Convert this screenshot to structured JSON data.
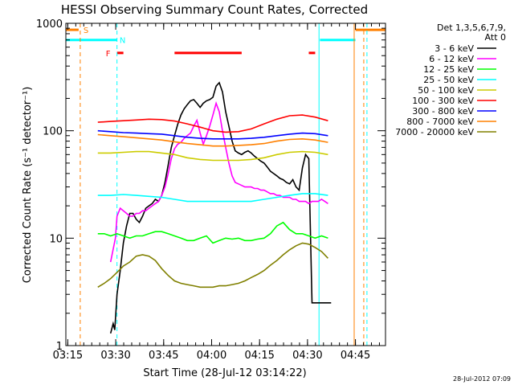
{
  "chart_data": {
    "type": "line",
    "title": "HESSI Observing Summary Count Rates, Corrected",
    "xlabel": "Start Time (28-Jul-12 03:14:22)",
    "ylabel": "Corrected Count Rate (s⁻¹ detector⁻¹)",
    "ylog": true,
    "ylim": [
      1,
      1000
    ],
    "xlim_minutes": [
      0,
      100
    ],
    "xtick_labels": [
      "03:15",
      "03:30",
      "03:45",
      "04:00",
      "04:15",
      "04:30",
      "04:45"
    ],
    "xtick_minutes": [
      0.6,
      15.6,
      30.6,
      45.6,
      60.6,
      75.6,
      90.6
    ],
    "ytick_labels": [
      "1",
      "10",
      "100",
      "1000"
    ],
    "ytick_values": [
      1,
      10,
      100,
      1000
    ],
    "legend_header": [
      "Det 1,3,5,6,7,9,",
      "Att 0"
    ],
    "legend_position": "outside-right",
    "timestamp": "28-Jul-2012 07:09",
    "series": [
      {
        "name": "3 - 6 keV",
        "color": "#000000",
        "x": [
          14,
          14.8,
          15.3,
          16,
          17,
          18,
          19,
          20,
          21,
          22,
          23,
          24,
          25,
          26,
          27,
          28,
          29,
          30,
          31,
          32,
          33,
          34,
          35,
          36,
          37,
          38,
          39,
          40,
          41,
          42,
          43,
          44,
          45,
          46,
          47,
          48,
          49,
          50,
          51,
          52,
          53,
          54,
          55,
          56,
          57,
          58,
          59,
          60,
          61,
          62,
          63,
          64,
          65,
          66,
          67,
          68,
          69,
          70,
          71,
          72,
          73,
          74,
          75,
          76,
          77,
          78,
          79,
          79.5,
          80,
          80.5,
          81,
          83
        ],
        "y": [
          1.3,
          1.6,
          1.4,
          3,
          5,
          9,
          13,
          17,
          17,
          15,
          14,
          16,
          19,
          20,
          21,
          23,
          22,
          25,
          33,
          48,
          70,
          90,
          115,
          140,
          160,
          175,
          190,
          195,
          180,
          165,
          180,
          190,
          195,
          205,
          260,
          280,
          230,
          150,
          110,
          80,
          65,
          62,
          60,
          63,
          65,
          62,
          58,
          55,
          52,
          50,
          46,
          42,
          40,
          38,
          36,
          35,
          33,
          32,
          35,
          30,
          28,
          45,
          60,
          55,
          2.5,
          2.5,
          2.5,
          2.5,
          2.5,
          2.5,
          2.5,
          2.5
        ]
      },
      {
        "name": "6 - 12 keV",
        "color": "#ff00ff",
        "x": [
          14,
          15.5,
          16,
          17,
          18,
          19,
          20,
          21,
          22,
          23,
          24,
          25,
          26,
          27,
          28,
          29,
          30,
          31,
          32,
          33,
          34,
          35,
          36,
          37,
          38,
          39,
          40,
          41,
          42,
          43,
          44,
          45,
          46,
          47,
          48,
          49,
          50,
          51,
          52,
          53,
          54,
          55,
          56,
          57,
          58,
          59,
          60,
          61,
          62,
          63,
          64,
          65,
          66,
          67,
          68,
          69,
          70,
          71,
          72,
          73,
          74,
          75,
          76,
          77,
          78,
          79,
          80,
          81,
          82
        ],
        "y": [
          6,
          10,
          16,
          19,
          18,
          17,
          16,
          16,
          17,
          17,
          18,
          18,
          19,
          20,
          21,
          22,
          25,
          30,
          40,
          55,
          68,
          75,
          78,
          85,
          90,
          95,
          110,
          125,
          95,
          75,
          90,
          110,
          140,
          180,
          150,
          100,
          70,
          50,
          38,
          33,
          32,
          31,
          30,
          30,
          30,
          29,
          29,
          28,
          28,
          27,
          26,
          26,
          25,
          25,
          24,
          24,
          24,
          23,
          23,
          22,
          22,
          22,
          21,
          22,
          22,
          22,
          23,
          22,
          21
        ]
      },
      {
        "name": "12 - 25 keV",
        "color": "#00ff00",
        "x": [
          10,
          12,
          14,
          16,
          18,
          20,
          22,
          24,
          26,
          28,
          30,
          32,
          34,
          36,
          38,
          40,
          42,
          44,
          46,
          48,
          50,
          52,
          54,
          56,
          58,
          60,
          62,
          64,
          66,
          68,
          70,
          72,
          74,
          76,
          78,
          80,
          82
        ],
        "y": [
          11,
          11,
          10.5,
          11,
          10.5,
          10,
          10.5,
          10.5,
          11,
          11.5,
          11.5,
          11,
          10.5,
          10,
          9.5,
          9.5,
          10,
          10.5,
          9,
          9.5,
          10,
          9.8,
          10,
          9.5,
          9.5,
          9.8,
          10,
          11,
          13,
          14,
          12,
          11,
          11,
          10.5,
          10,
          10.5,
          10
        ]
      },
      {
        "name": "25 - 50 keV",
        "color": "#00ffff",
        "x": [
          10,
          14,
          18,
          22,
          26,
          30,
          34,
          38,
          42,
          46,
          50,
          54,
          58,
          62,
          66,
          70,
          74,
          78,
          82
        ],
        "y": [
          25,
          25,
          25.5,
          25,
          24.5,
          24,
          23,
          22,
          22,
          22,
          22,
          22,
          22,
          23,
          24,
          25,
          26,
          26,
          25
        ]
      },
      {
        "name": "50 - 100 keV",
        "color": "#cccc00",
        "x": [
          10,
          14,
          18,
          22,
          26,
          30,
          34,
          38,
          42,
          46,
          50,
          54,
          58,
          62,
          66,
          70,
          74,
          78,
          82
        ],
        "y": [
          62,
          62,
          63,
          64,
          64,
          62,
          60,
          56,
          54,
          53,
          53,
          53,
          54,
          56,
          60,
          63,
          64,
          63,
          60
        ]
      },
      {
        "name": "100 - 300 keV",
        "color": "#ff0000",
        "x": [
          10,
          14,
          18,
          22,
          26,
          30,
          34,
          38,
          42,
          46,
          50,
          54,
          58,
          62,
          66,
          70,
          74,
          78,
          82
        ],
        "y": [
          120,
          122,
          124,
          126,
          128,
          127,
          123,
          116,
          108,
          100,
          97,
          98,
          104,
          116,
          128,
          138,
          140,
          134,
          124
        ]
      },
      {
        "name": "300 - 800 keV",
        "color": "#0000ff",
        "x": [
          10,
          14,
          18,
          22,
          26,
          30,
          34,
          38,
          42,
          46,
          50,
          54,
          58,
          62,
          66,
          70,
          74,
          78,
          82
        ],
        "y": [
          100,
          98,
          96,
          95,
          94,
          93,
          90,
          87,
          85,
          84,
          84,
          84,
          85,
          87,
          90,
          93,
          95,
          94,
          90
        ]
      },
      {
        "name": "800 - 7000 keV",
        "color": "#ff8000",
        "x": [
          10,
          14,
          18,
          22,
          26,
          30,
          34,
          38,
          42,
          46,
          50,
          54,
          58,
          62,
          66,
          70,
          74,
          78,
          82
        ],
        "y": [
          92,
          90,
          88,
          86,
          84,
          82,
          79,
          76,
          74,
          72,
          72,
          73,
          74,
          76,
          80,
          83,
          84,
          82,
          78
        ]
      },
      {
        "name": "7000 - 20000 keV",
        "color": "#808000",
        "x": [
          10,
          12,
          14,
          16,
          18,
          20,
          22,
          24,
          26,
          28,
          30,
          32,
          34,
          36,
          38,
          40,
          42,
          44,
          46,
          48,
          50,
          52,
          54,
          56,
          58,
          60,
          62,
          64,
          66,
          68,
          70,
          72,
          74,
          76,
          78,
          80,
          82
        ],
        "y": [
          3.5,
          3.8,
          4.2,
          4.8,
          5.5,
          6,
          6.8,
          7,
          6.8,
          6.2,
          5.2,
          4.5,
          4,
          3.8,
          3.7,
          3.6,
          3.5,
          3.5,
          3.5,
          3.6,
          3.6,
          3.7,
          3.8,
          4,
          4.3,
          4.6,
          5,
          5.6,
          6.2,
          7,
          7.8,
          8.5,
          9,
          8.8,
          8.2,
          7.5,
          6.5
        ]
      }
    ],
    "bars": {
      "S": {
        "label": "S",
        "color": "#ff8000",
        "level": 870,
        "segments": [
          [
            0,
            4
          ],
          [
            90.6,
            100
          ]
        ]
      },
      "N": {
        "label": "N",
        "color": "#00ffff",
        "level": 700,
        "segments": [
          [
            0,
            16
          ],
          [
            79.5,
            90.6
          ]
        ]
      },
      "F": {
        "label": "F",
        "color": "#ff0000",
        "level": 530,
        "segments": [
          [
            16,
            18
          ],
          [
            34,
            55
          ],
          [
            76,
            78
          ]
        ]
      }
    },
    "vlines": [
      {
        "x": 4.5,
        "color": "#ff8000",
        "style": "dashed"
      },
      {
        "x": 16,
        "color": "#00ffff",
        "style": "dashed"
      },
      {
        "x": 79.2,
        "color": "#00ffff",
        "style": "solid"
      },
      {
        "x": 90.2,
        "color": "#ff8000",
        "style": "solid"
      },
      {
        "x": 93.2,
        "color": "#ff8000",
        "style": "dashed"
      },
      {
        "x": 94.2,
        "color": "#00ffff",
        "style": "dashed"
      }
    ]
  }
}
